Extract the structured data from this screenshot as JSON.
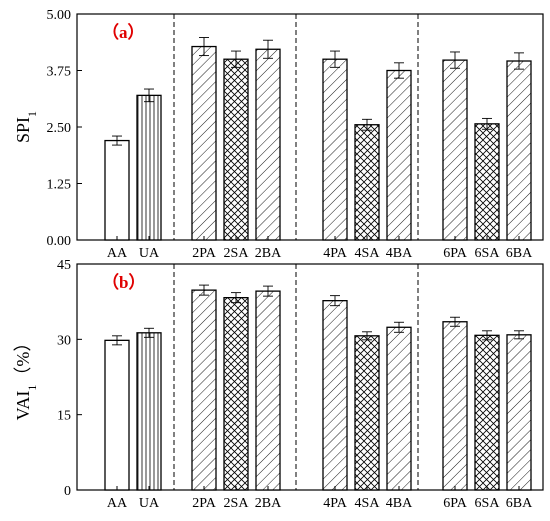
{
  "chart_data": [
    {
      "type": "bar",
      "panel_label": "（a）",
      "ylabel": "SPI",
      "ylabel_sub": "1",
      "ylim": [
        0,
        5
      ],
      "yticks": [
        "0.00",
        "1.25",
        "2.50",
        "3.75",
        "5.00"
      ],
      "groups": [
        {
          "categories": [
            "AA",
            "UA"
          ],
          "values": [
            2.2,
            3.2
          ],
          "errors": [
            0.1,
            0.14
          ],
          "patterns": [
            "none",
            "vertical"
          ]
        },
        {
          "categories": [
            "2PA",
            "2SA",
            "2BA"
          ],
          "values": [
            4.28,
            4.0,
            4.22
          ],
          "errors": [
            0.2,
            0.18,
            0.2
          ],
          "patterns": [
            "diag",
            "cross",
            "diag"
          ]
        },
        {
          "categories": [
            "4PA",
            "4SA",
            "4BA"
          ],
          "values": [
            4.0,
            2.55,
            3.75
          ],
          "errors": [
            0.18,
            0.12,
            0.17
          ],
          "patterns": [
            "diag",
            "cross",
            "diag"
          ]
        },
        {
          "categories": [
            "6PA",
            "6SA",
            "6BA"
          ],
          "values": [
            3.98,
            2.57,
            3.96
          ],
          "errors": [
            0.18,
            0.12,
            0.18
          ],
          "patterns": [
            "diag",
            "cross",
            "diag"
          ]
        }
      ],
      "dashed_separators": true,
      "grid": false
    },
    {
      "type": "bar",
      "panel_label": "（b）",
      "ylabel": "VAI",
      "ylabel_sub": "1",
      "ylabel_suffix": "（%）",
      "ylim": [
        0,
        45
      ],
      "yticks": [
        "0",
        "15",
        "30",
        "45"
      ],
      "groups": [
        {
          "categories": [
            "AA",
            "UA"
          ],
          "values": [
            29.8,
            31.3
          ],
          "errors": [
            0.9,
            0.9
          ],
          "patterns": [
            "none",
            "vertical"
          ]
        },
        {
          "categories": [
            "2PA",
            "2SA",
            "2BA"
          ],
          "values": [
            39.8,
            38.3,
            39.6
          ],
          "errors": [
            1.0,
            1.0,
            1.0
          ],
          "patterns": [
            "diag",
            "cross",
            "diag"
          ]
        },
        {
          "categories": [
            "4PA",
            "4SA",
            "4BA"
          ],
          "values": [
            37.7,
            30.7,
            32.4
          ],
          "errors": [
            1.0,
            0.8,
            1.0
          ],
          "patterns": [
            "diag",
            "cross",
            "diag"
          ]
        },
        {
          "categories": [
            "6PA",
            "6SA",
            "6BA"
          ],
          "values": [
            33.5,
            30.8,
            30.9
          ],
          "errors": [
            0.9,
            0.9,
            0.8
          ],
          "patterns": [
            "diag",
            "cross",
            "diag"
          ]
        }
      ],
      "dashed_separators": true,
      "grid": false
    }
  ]
}
